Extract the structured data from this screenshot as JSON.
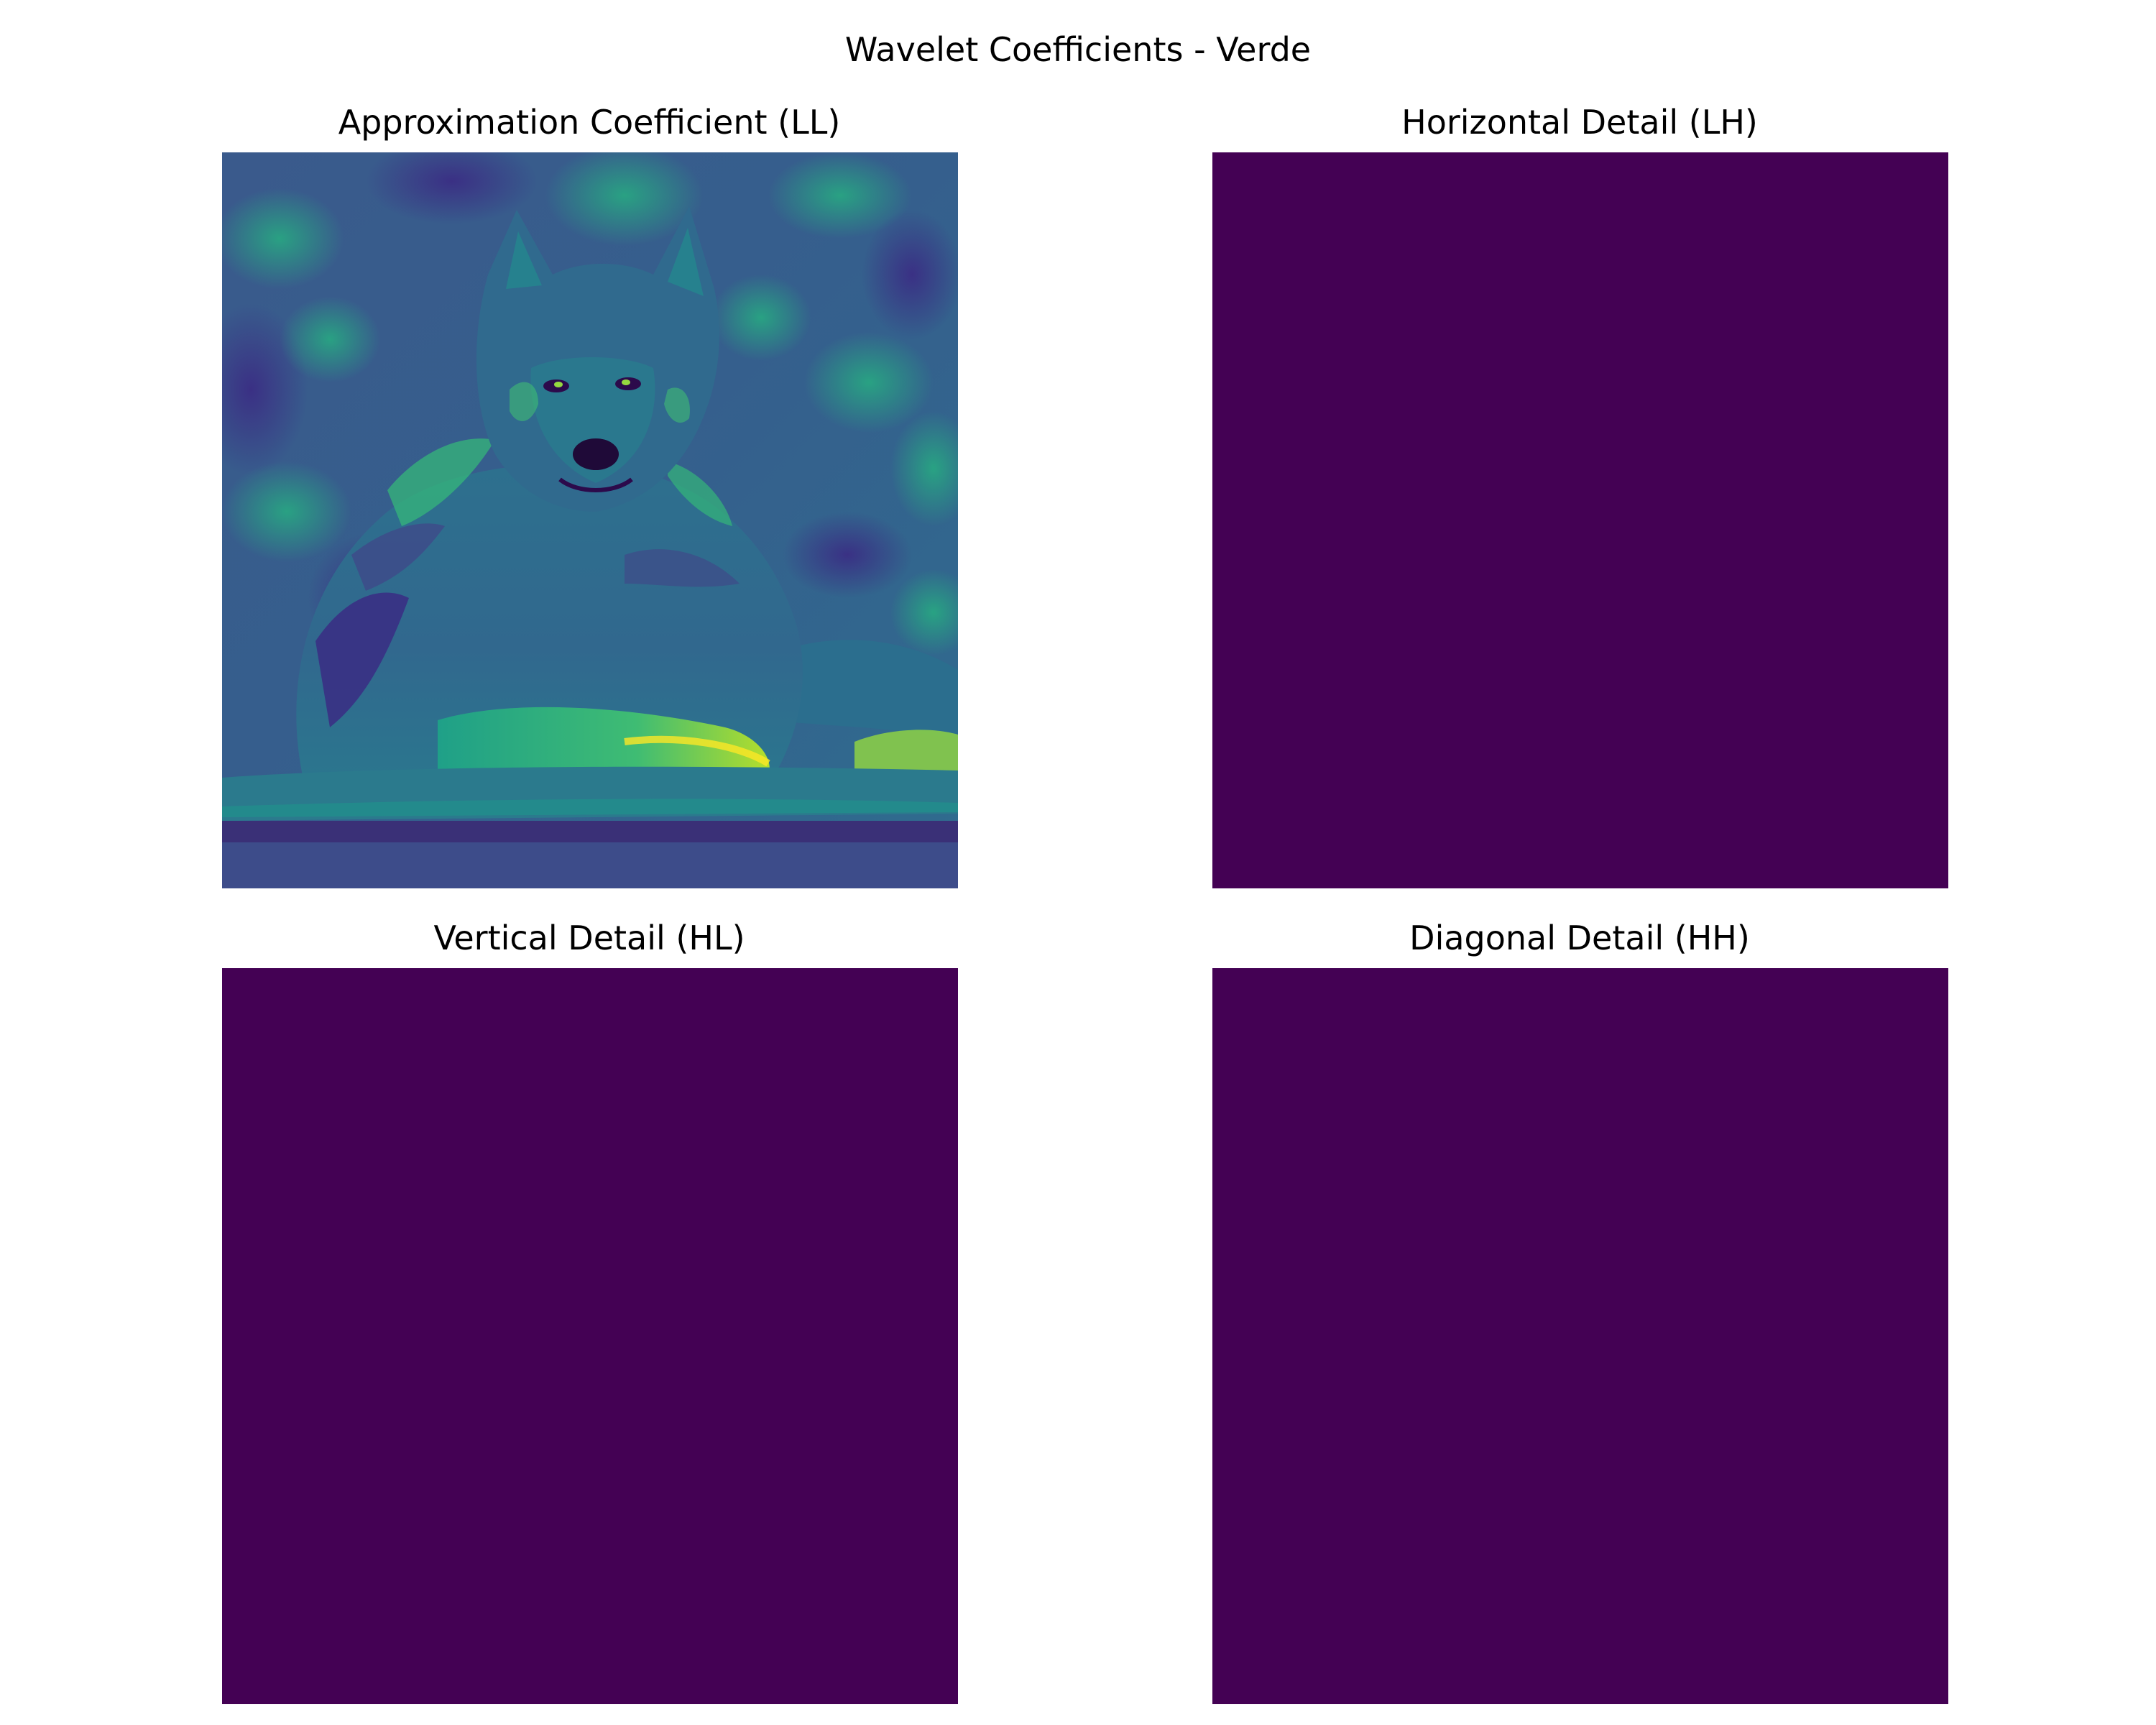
{
  "figure": {
    "title": "Wavelet Coefficients - Verde",
    "colormap": "viridis",
    "panels": [
      {
        "title": "Approximation Coefficient (LL)"
      },
      {
        "title": "Horizontal Detail (LH)",
        "color": "#440154"
      },
      {
        "title": "Vertical Detail (HL)",
        "color": "#440154"
      },
      {
        "title": "Diagonal Detail (HH)",
        "color": "#440154"
      }
    ]
  }
}
